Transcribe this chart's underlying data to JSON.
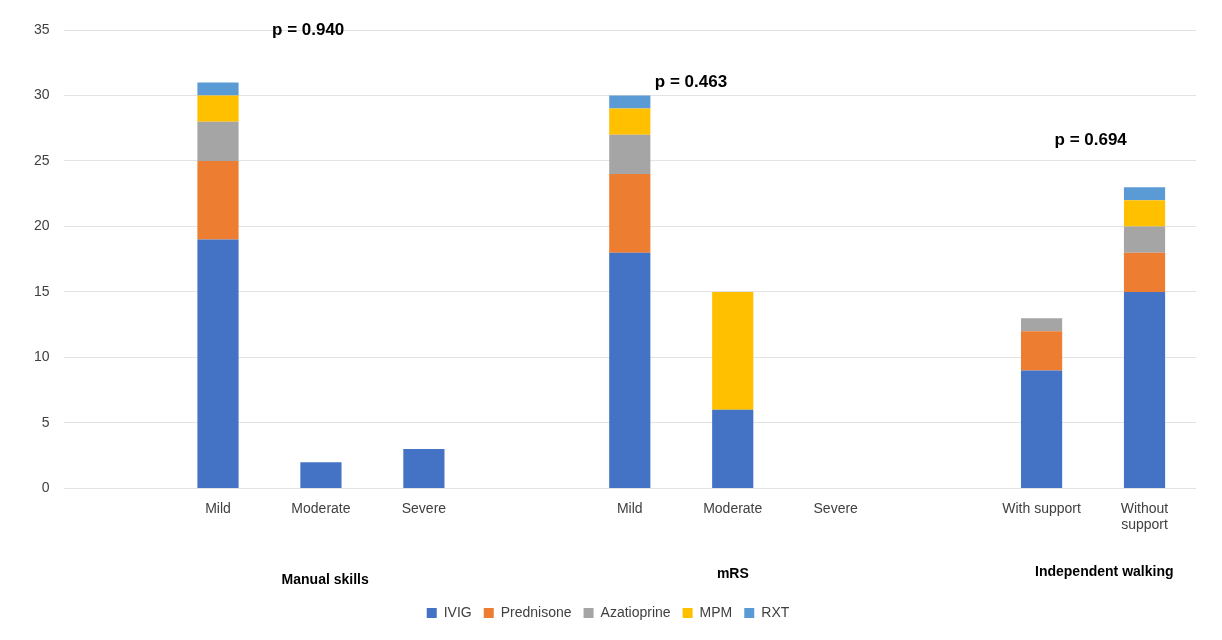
{
  "chart_data": {
    "type": "bar",
    "stacked": true,
    "categories": [
      null,
      "Mild",
      "Moderate",
      "Severe",
      null,
      "Mild",
      "Moderate",
      "Severe",
      null,
      "With support",
      "Without support"
    ],
    "series": [
      {
        "name": "IVIG",
        "color": "#4472c4",
        "values": [
          null,
          19,
          2,
          3,
          null,
          18,
          6,
          0,
          null,
          9,
          15
        ]
      },
      {
        "name": "Prednisone",
        "color": "#ed7d31",
        "values": [
          null,
          6,
          0,
          0,
          null,
          6,
          0,
          0,
          null,
          3,
          3
        ]
      },
      {
        "name": "Azatioprine",
        "color": "#a5a5a5",
        "values": [
          null,
          3,
          0,
          0,
          null,
          3,
          0,
          0,
          null,
          1,
          2
        ]
      },
      {
        "name": "MPM",
        "color": "#ffc000",
        "values": [
          null,
          2,
          0,
          0,
          null,
          2,
          9,
          0,
          null,
          0,
          2
        ]
      },
      {
        "name": "RXT",
        "color": "#5b9bd5",
        "values": [
          null,
          1,
          0,
          0,
          null,
          1,
          0,
          0,
          null,
          0,
          1
        ]
      }
    ],
    "ylim": [
      0,
      35
    ],
    "yticks": [
      0,
      5,
      10,
      15,
      20,
      25,
      30,
      35
    ],
    "grid": "y",
    "legend": "bottom",
    "annotations": [
      "p = 0.940",
      "p = 0.463",
      "p = 0.694",
      "Manual skills",
      "mRS",
      "Independent walking"
    ]
  }
}
